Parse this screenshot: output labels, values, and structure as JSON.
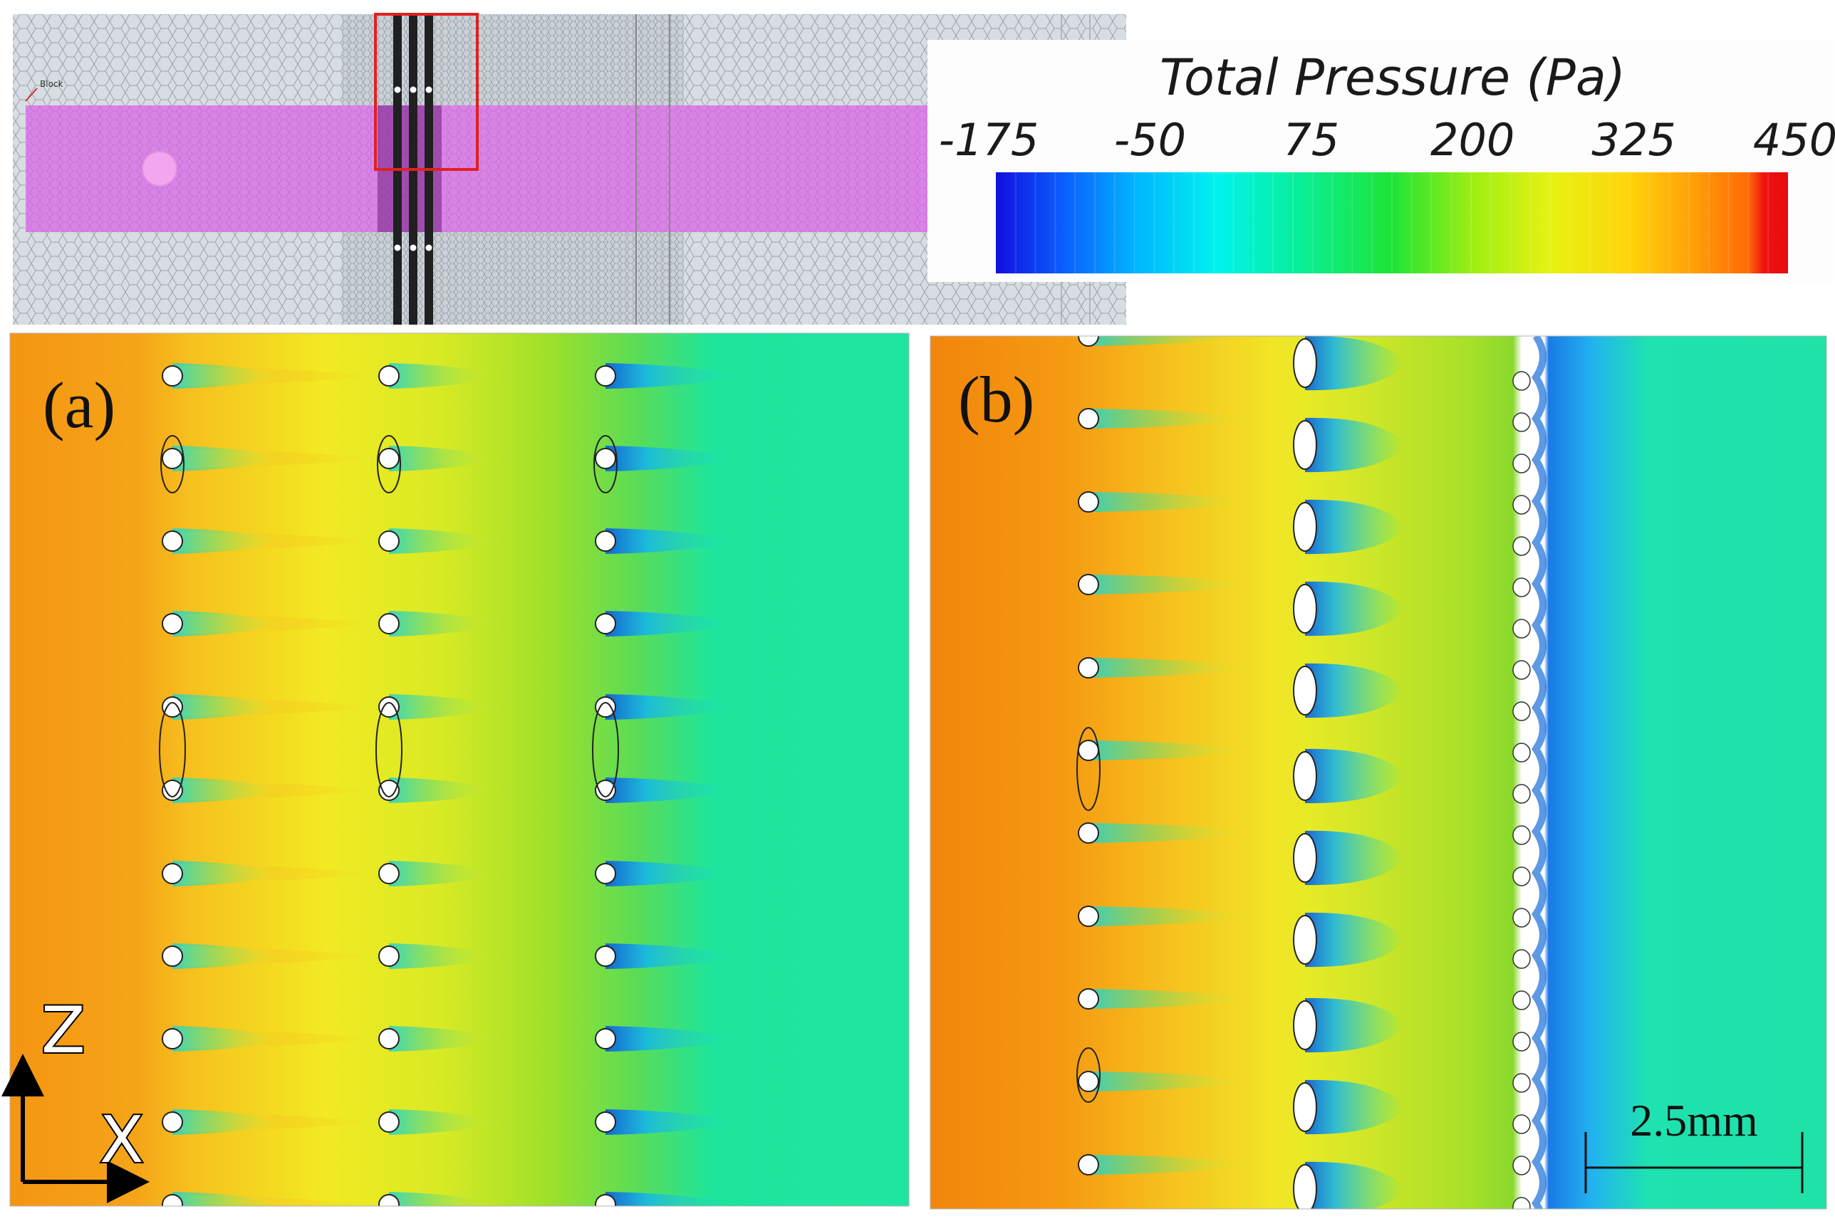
{
  "mesh_view": {
    "block_label": "Block",
    "colors": {
      "band": "#d983e6",
      "mesh": "#d4dadf",
      "highlight": "#e02020"
    }
  },
  "legend": {
    "title": "Total Pressure (Pa)",
    "ticks": [
      "-175",
      "-50",
      "75",
      "200",
      "325",
      "450"
    ],
    "colors": [
      "#1010e0",
      "#0a62ff",
      "#00b8ff",
      "#00f2ee",
      "#08ef9a",
      "#1ee436",
      "#9cee12",
      "#e6f212",
      "#ffd40a",
      "#ffa008",
      "#ff6a05",
      "#f01010"
    ]
  },
  "panel_a": {
    "label": "(a)",
    "colors": {
      "inlet": "#f49a12",
      "mid": "#f2e81e",
      "green": "#86d82a",
      "outlet": "#1ee6a0",
      "wake": "#10b8ee"
    }
  },
  "panel_b": {
    "label": "(b)",
    "scale_bar": "2.5mm",
    "colors": {
      "inlet": "#f2870e",
      "mid": "#f0e024",
      "green": "#8fd82a",
      "wall": "#ffffff",
      "channel": "#1e8ee8",
      "outlet": "#1ee2a6"
    }
  },
  "axes": {
    "z_label": "Z",
    "x_label": "X"
  }
}
